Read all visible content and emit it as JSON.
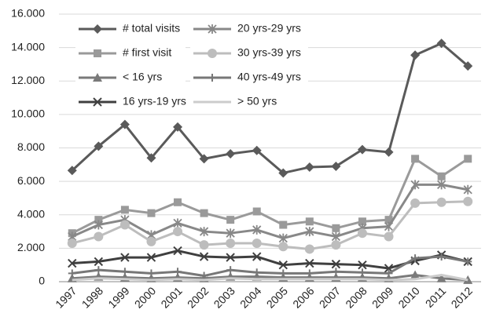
{
  "chart_data": {
    "type": "line",
    "categories": [
      "1997",
      "1998",
      "1999",
      "2000",
      "2001",
      "2002",
      "2003",
      "2004",
      "2005",
      "2006",
      "2007",
      "2008",
      "2009",
      "2010",
      "2011",
      "2012"
    ],
    "ylim": [
      0,
      16000
    ],
    "yticks": [
      0,
      {
        "value": 2000,
        "label": "2.000"
      },
      {
        "value": 4000,
        "label": "4.000"
      },
      {
        "value": 6000,
        "label": "6.000"
      },
      {
        "value": 8000,
        "label": "8.000"
      },
      {
        "value": 10000,
        "label": "10.000"
      },
      {
        "value": 12000,
        "label": "12.000"
      },
      {
        "value": 14000,
        "label": "14.000"
      },
      {
        "value": 16000,
        "label": "16.000"
      }
    ],
    "grid": true,
    "series": [
      {
        "name": "# total visits",
        "color": "#5a5a5a",
        "marker": "diamond",
        "values": [
          6650,
          8100,
          9400,
          7400,
          9250,
          7350,
          7650,
          7850,
          6500,
          6850,
          6900,
          7900,
          7750,
          13550,
          14250,
          12900
        ]
      },
      {
        "name": "# first visit",
        "color": "#9a9a9a",
        "marker": "square",
        "values": [
          2900,
          3700,
          4300,
          4100,
          4750,
          4100,
          3700,
          4200,
          3400,
          3600,
          3200,
          3600,
          3700,
          7350,
          6300,
          7350
        ]
      },
      {
        "name": "< 16 yrs",
        "color": "#7a7a7a",
        "marker": "triangle",
        "values": [
          200,
          300,
          250,
          200,
          250,
          200,
          300,
          300,
          250,
          250,
          250,
          250,
          200,
          400,
          200,
          100
        ]
      },
      {
        "name": "16 yrs-19 yrs",
        "color": "#3f3f3f",
        "marker": "x",
        "values": [
          1100,
          1200,
          1450,
          1450,
          1850,
          1500,
          1450,
          1500,
          1000,
          1100,
          1050,
          1000,
          800,
          1250,
          1600,
          1200
        ]
      },
      {
        "name": "20 yrs-29 yrs",
        "color": "#888888",
        "marker": "asterisk",
        "values": [
          2700,
          3400,
          3700,
          2800,
          3500,
          3000,
          2900,
          3100,
          2600,
          3000,
          2700,
          3200,
          3300,
          5800,
          5800,
          5500
        ]
      },
      {
        "name": "30 yrs-39 yrs",
        "color": "#bdbdbd",
        "marker": "circle",
        "values": [
          2300,
          2700,
          3400,
          2400,
          3000,
          2200,
          2300,
          2300,
          2100,
          1950,
          2200,
          2900,
          2700,
          4700,
          4750,
          4800
        ]
      },
      {
        "name": "40 yrs-49 yrs",
        "color": "#777777",
        "marker": "plus",
        "values": [
          500,
          700,
          600,
          500,
          600,
          350,
          700,
          550,
          500,
          500,
          600,
          550,
          500,
          1400,
          1500,
          1200
        ]
      },
      {
        "name": "> 50 yrs",
        "color": "#cccccc",
        "marker": "none",
        "values": [
          100,
          200,
          150,
          100,
          150,
          100,
          200,
          150,
          150,
          150,
          150,
          150,
          100,
          150,
          400,
          100
        ]
      }
    ]
  }
}
